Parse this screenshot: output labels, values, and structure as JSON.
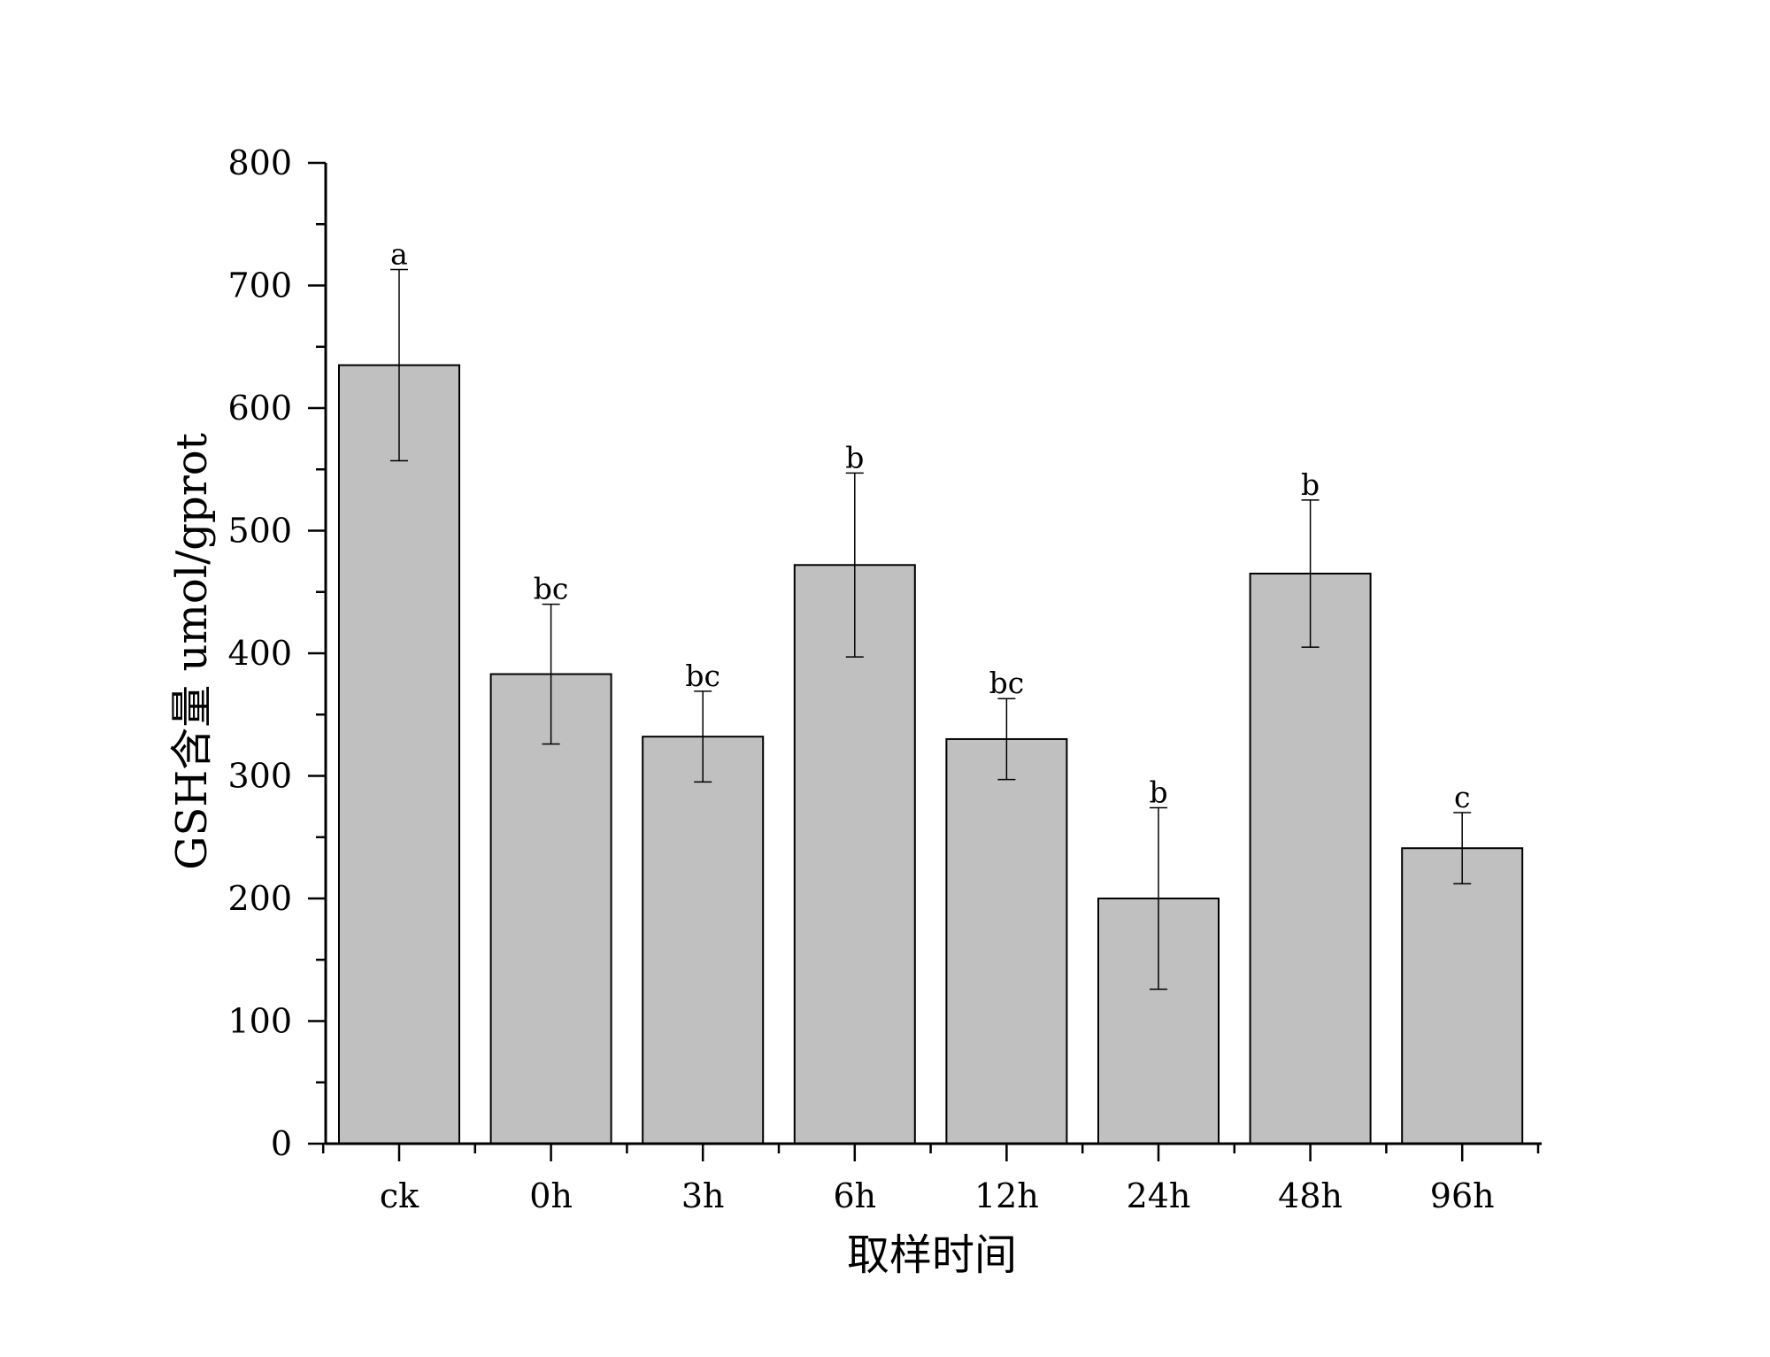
{
  "chart_data": {
    "type": "bar",
    "title": "",
    "xlabel": "取样时间",
    "ylabel": "GSH含量 umol/gprot",
    "ylim": [
      0,
      800
    ],
    "yticks": [
      "0",
      "100",
      "200",
      "300",
      "400",
      "500",
      "600",
      "700",
      "800"
    ],
    "categories": [
      "ck",
      "0h",
      "3h",
      "6h",
      "12h",
      "24h",
      "48h",
      "96h"
    ],
    "values": [
      635,
      383,
      332,
      472,
      330,
      200,
      465,
      241
    ],
    "error": [
      78,
      57,
      37,
      75,
      33,
      74,
      60,
      29
    ],
    "significance": [
      "a",
      "bc",
      "bc",
      "b",
      "bc",
      "b",
      "b",
      "c"
    ],
    "bar_color": "#c0c0c0",
    "grid": false,
    "legend": "none"
  }
}
